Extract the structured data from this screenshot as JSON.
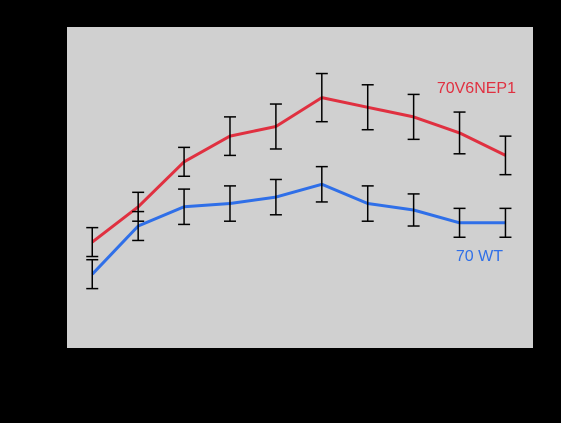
{
  "chart_data": {
    "type": "line",
    "x": [
      1,
      2,
      3,
      4,
      5,
      6,
      7,
      8,
      9,
      10
    ],
    "ylim": [
      0,
      10
    ],
    "xlim": [
      0.45,
      10.6
    ],
    "grid": false,
    "background_color": "#d0d0d0",
    "series": [
      {
        "name": "70V6NEP1",
        "color": "#e03040",
        "values": [
          3.3,
          4.4,
          5.8,
          6.6,
          6.9,
          7.8,
          7.5,
          7.2,
          6.7,
          6.0
        ],
        "errors": [
          0.45,
          0.45,
          0.45,
          0.6,
          0.7,
          0.75,
          0.7,
          0.7,
          0.65,
          0.6
        ]
      },
      {
        "name": "70 WT",
        "color": "#2f6fe8",
        "values": [
          2.3,
          3.8,
          4.4,
          4.5,
          4.7,
          5.1,
          4.5,
          4.3,
          3.9,
          3.9
        ],
        "errors": [
          0.45,
          0.45,
          0.55,
          0.55,
          0.55,
          0.55,
          0.55,
          0.5,
          0.45,
          0.45
        ]
      }
    ]
  }
}
